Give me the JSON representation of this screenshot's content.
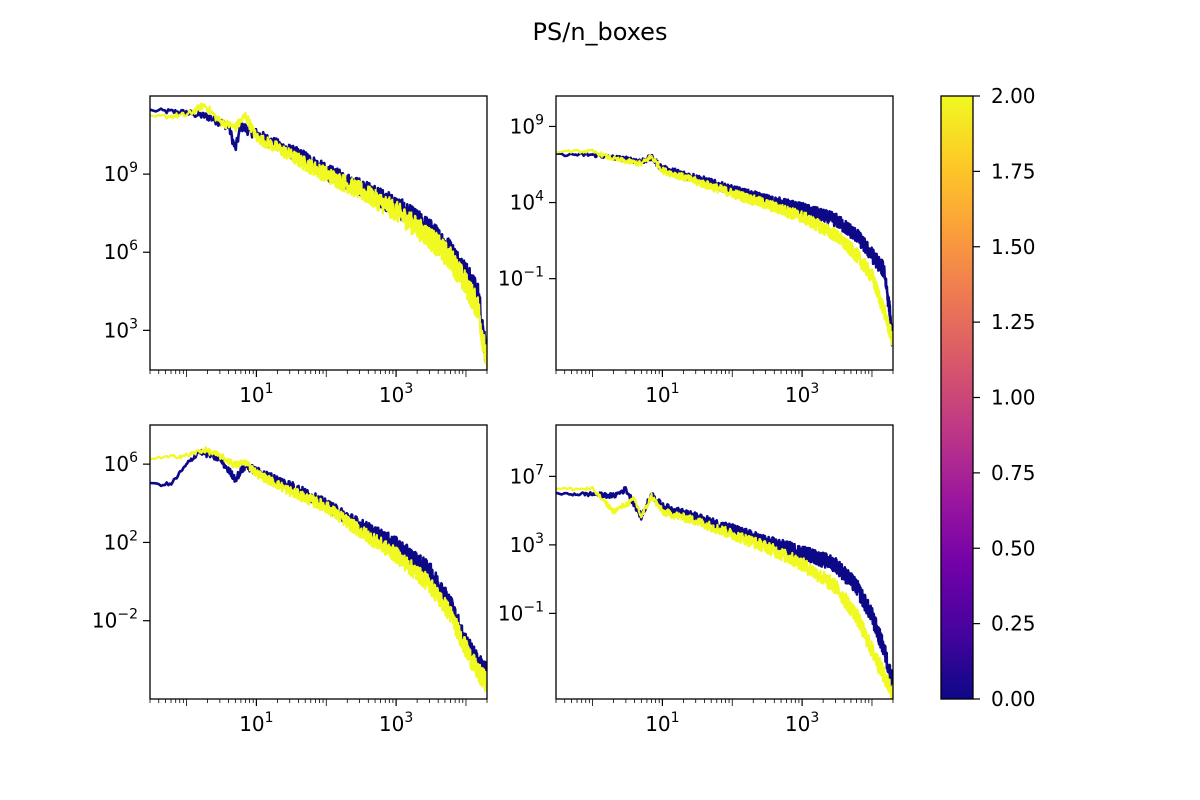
{
  "figure": {
    "title": "PS/n_boxes"
  },
  "chart_data": [
    {
      "type": "line",
      "panel": "top-left",
      "xscale": "log",
      "yscale": "log",
      "xlim": [
        0.3,
        20000
      ],
      "ylim": [
        30,
        1000000000000
      ],
      "xticks": [
        10,
        1000
      ],
      "yticks": [
        1000,
        1000000,
        1000000000
      ],
      "series": [
        {
          "color": "#0d0887",
          "points": [
            [
              0.3,
              300000000000.0
            ],
            [
              1,
              250000000000.0
            ],
            [
              2,
              180000000000.0
            ],
            [
              4,
              80000000000.0
            ],
            [
              5,
              10000000000.0
            ],
            [
              6,
              80000000000.0
            ],
            [
              10,
              40000000000.0
            ],
            [
              20,
              15000000000.0
            ],
            [
              50,
              5000000000.0
            ],
            [
              100,
              1500000000.0
            ],
            [
              300,
              400000000.0
            ],
            [
              1000,
              80000000.0
            ],
            [
              3000,
              10000000.0
            ],
            [
              6000,
              1500000.0
            ],
            [
              10000,
              200000.0
            ],
            [
              15000,
              30000.0
            ],
            [
              20000,
              100
            ]
          ]
        },
        {
          "color": "#f0f921",
          "points": [
            [
              0.3,
              160000000000.0
            ],
            [
              1,
              200000000000.0
            ],
            [
              1.8,
              500000000000.0
            ],
            [
              3,
              120000000000.0
            ],
            [
              5,
              70000000000.0
            ],
            [
              7,
              200000000000.0
            ],
            [
              10,
              30000000000.0
            ],
            [
              20,
              12000000000.0
            ],
            [
              50,
              3000000000.0
            ],
            [
              100,
              1200000000.0
            ],
            [
              300,
              300000000.0
            ],
            [
              1000,
              50000000.0
            ],
            [
              3000,
              5000000.0
            ],
            [
              6000,
              800000.0
            ],
            [
              10000,
              80000.0
            ],
            [
              15000,
              10000.0
            ],
            [
              20000,
              60
            ]
          ]
        }
      ]
    },
    {
      "type": "line",
      "panel": "top-right",
      "xscale": "log",
      "yscale": "log",
      "xlim": [
        0.3,
        20000
      ],
      "ylim": [
        1e-07,
        100000000000.0
      ],
      "xticks": [
        10,
        1000
      ],
      "yticks": [
        0.1,
        10000,
        1000000000
      ],
      "series": [
        {
          "color": "#0d0887",
          "points": [
            [
              0.3,
              15000000.0
            ],
            [
              1,
              15000000.0
            ],
            [
              2,
              10000000.0
            ],
            [
              5,
              6000000.0
            ],
            [
              7,
              10000000.0
            ],
            [
              10,
              2000000.0
            ],
            [
              30,
              500000.0
            ],
            [
              100,
              80000.0
            ],
            [
              300,
              20000.0
            ],
            [
              1000,
              5000.0
            ],
            [
              3000,
              1000.0
            ],
            [
              6000,
              100.0
            ],
            [
              10000,
              5
            ],
            [
              15000,
              0.5
            ],
            [
              18000,
              0.001
            ],
            [
              20000,
              3e-06
            ]
          ]
        },
        {
          "color": "#f0f921",
          "points": [
            [
              0.3,
              25000000.0
            ],
            [
              1,
              25000000.0
            ],
            [
              2,
              8000000.0
            ],
            [
              5,
              4000000.0
            ],
            [
              7,
              12000000.0
            ],
            [
              10,
              1500000.0
            ],
            [
              30,
              300000.0
            ],
            [
              100,
              50000.0
            ],
            [
              300,
              10000.0
            ],
            [
              1000,
              1500.0
            ],
            [
              3000,
              100.0
            ],
            [
              6000,
              5
            ],
            [
              10000,
              0.2
            ],
            [
              15000,
              0.001
            ],
            [
              20000,
              1e-05
            ]
          ]
        }
      ]
    },
    {
      "type": "line",
      "panel": "bottom-left",
      "xscale": "log",
      "yscale": "log",
      "xlim": [
        0.3,
        20000
      ],
      "ylim": [
        1e-06,
        100000000
      ],
      "xticks": [
        10,
        1000
      ],
      "yticks": [
        0.01,
        100,
        1000000
      ],
      "series": [
        {
          "color": "#0d0887",
          "points": [
            [
              0.3,
              100000.0
            ],
            [
              0.6,
              100000.0
            ],
            [
              1,
              1000000.0
            ],
            [
              1.5,
              5000000.0
            ],
            [
              3,
              2000000.0
            ],
            [
              5,
              200000.0
            ],
            [
              7,
              1000000.0
            ],
            [
              10,
              500000.0
            ],
            [
              30,
              100000.0
            ],
            [
              100,
              10000.0
            ],
            [
              300,
              1000.0
            ],
            [
              1000,
              100.0
            ],
            [
              3000,
              5
            ],
            [
              6000,
              0.1
            ],
            [
              10000,
              0.001
            ],
            [
              15000,
              0.0001
            ],
            [
              20000,
              3e-05
            ]
          ]
        },
        {
          "color": "#f0f921",
          "points": [
            [
              0.3,
              2000000.0
            ],
            [
              1,
              3000000.0
            ],
            [
              1.8,
              6000000.0
            ],
            [
              3,
              3000000.0
            ],
            [
              5,
              1000000.0
            ],
            [
              7,
              1500000.0
            ],
            [
              10,
              400000.0
            ],
            [
              30,
              50000.0
            ],
            [
              100,
              8000.0
            ],
            [
              300,
              500.0
            ],
            [
              1000,
              30
            ],
            [
              3000,
              1
            ],
            [
              6000,
              0.03
            ],
            [
              10000,
              0.0005
            ],
            [
              15000,
              3e-05
            ],
            [
              20000,
              1e-05
            ]
          ]
        }
      ]
    },
    {
      "type": "line",
      "panel": "bottom-right",
      "xscale": "log",
      "yscale": "log",
      "xlim": [
        0.3,
        20000
      ],
      "ylim": [
        1e-06,
        10000000000.0
      ],
      "xticks": [
        10,
        1000
      ],
      "yticks": [
        0.1,
        1000,
        10000000
      ],
      "series": [
        {
          "color": "#0d0887",
          "points": [
            [
              0.3,
              1000000.0
            ],
            [
              1,
              1000000.0
            ],
            [
              2,
              800000.0
            ],
            [
              3,
              2000000.0
            ],
            [
              5,
              50000.0
            ],
            [
              7,
              1000000.0
            ],
            [
              10,
              200000.0
            ],
            [
              30,
              50000.0
            ],
            [
              100,
              10000.0
            ],
            [
              300,
              2000.0
            ],
            [
              1000,
              500.0
            ],
            [
              3000,
              100.0
            ],
            [
              6000,
              5
            ],
            [
              10000,
              0.1
            ],
            [
              15000,
              0.001
            ],
            [
              20000,
              1e-05
            ]
          ]
        },
        {
          "color": "#f0f921",
          "points": [
            [
              0.3,
              2000000.0
            ],
            [
              1,
              2000000.0
            ],
            [
              2,
              100000.0
            ],
            [
              4,
              500000.0
            ],
            [
              5,
              50000.0
            ],
            [
              7,
              800000.0
            ],
            [
              10,
              100000.0
            ],
            [
              30,
              30000.0
            ],
            [
              100,
              5000.0
            ],
            [
              300,
              1000.0
            ],
            [
              1000,
              100.0
            ],
            [
              3000,
              5
            ],
            [
              6000,
              0.1
            ],
            [
              10000,
              0.001
            ],
            [
              15000,
              3e-05
            ],
            [
              20000,
              3e-06
            ]
          ]
        }
      ]
    }
  ],
  "colorbar": {
    "min": 0,
    "max": 2,
    "ticks": [
      0,
      0.25,
      0.5,
      0.75,
      1,
      1.25,
      1.5,
      1.75,
      2
    ],
    "tick_labels": [
      "0.00",
      "0.25",
      "0.50",
      "0.75",
      "1.00",
      "1.25",
      "1.50",
      "1.75",
      "2.00"
    ],
    "colormap": "plasma",
    "stops": [
      "#0d0887",
      "#46039f",
      "#7201a8",
      "#9c179e",
      "#bd3786",
      "#d8576b",
      "#ed7953",
      "#fb9f3a",
      "#fdca26",
      "#f0f921"
    ]
  }
}
